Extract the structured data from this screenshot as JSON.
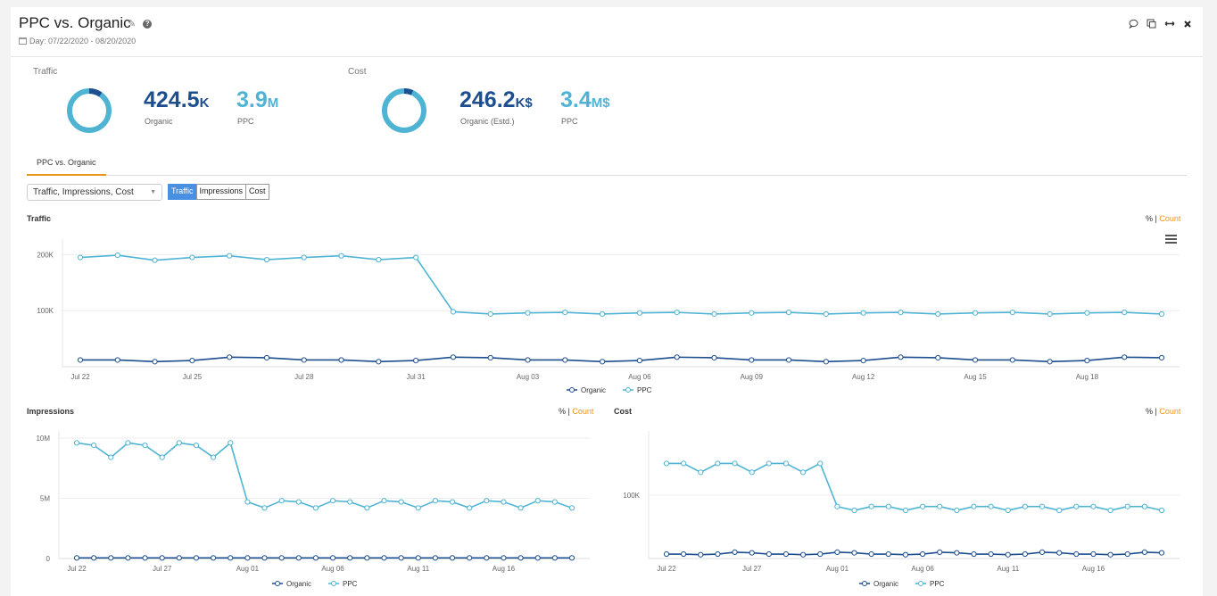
{
  "header": {
    "title": "PPC vs. Organic",
    "date_range": "Day: 07/22/2020 - 08/20/2020",
    "icons": [
      "pencil-icon",
      "help-icon",
      "comment-icon",
      "copy-icon",
      "resize-icon",
      "close-icon"
    ]
  },
  "kpis": {
    "traffic": {
      "label": "Traffic",
      "organic_value": "424.5",
      "organic_unit": "K",
      "organic_label": "Organic",
      "ppc_value": "3.9",
      "ppc_unit": "M",
      "ppc_label": "PPC",
      "organic_share": 0.098
    },
    "cost": {
      "label": "Cost",
      "organic_value": "246.2",
      "organic_unit": "K$",
      "organic_label": "Organic (Estd.)",
      "ppc_value": "3.4",
      "ppc_unit": "M$",
      "ppc_label": "PPC",
      "organic_share": 0.067
    }
  },
  "tabs": [
    {
      "label": "PPC vs. Organic",
      "active": true
    }
  ],
  "controls": {
    "metrics_select": "Traffic, Impressions, Cost",
    "toggle": [
      "Traffic",
      "Impressions",
      "Cost"
    ],
    "toggle_active": "Traffic"
  },
  "pct_label": "%",
  "sep": "|",
  "count_label": "Count",
  "colors": {
    "organic": "#1d4e8f",
    "ppc": "#4fb4d4",
    "accent": "#e8951a",
    "active_button": "#4a90e2"
  },
  "chart_data": [
    {
      "type": "line",
      "title": "Traffic",
      "x": [
        "Jul 22",
        "Jul 23",
        "Jul 24",
        "Jul 25",
        "Jul 26",
        "Jul 27",
        "Jul 28",
        "Jul 29",
        "Jul 30",
        "Jul 31",
        "Aug 01",
        "Aug 02",
        "Aug 03",
        "Aug 04",
        "Aug 05",
        "Aug 06",
        "Aug 07",
        "Aug 08",
        "Aug 09",
        "Aug 10",
        "Aug 11",
        "Aug 12",
        "Aug 13",
        "Aug 14",
        "Aug 15",
        "Aug 16",
        "Aug 17",
        "Aug 18",
        "Aug 19",
        "Aug 20"
      ],
      "xticks": [
        "Jul 22",
        "Jul 25",
        "Jul 28",
        "Jul 31",
        "Aug 03",
        "Aug 06",
        "Aug 09",
        "Aug 12",
        "Aug 15",
        "Aug 18"
      ],
      "yticks": [
        {
          "value": 100000,
          "label": "100K"
        },
        {
          "value": 200000,
          "label": "200K"
        }
      ],
      "ylim": [
        0,
        215000
      ],
      "series": [
        {
          "name": "Organic",
          "values": [
            12000,
            12000,
            9000,
            11000,
            17000,
            16000,
            12000,
            12000,
            9000,
            11000,
            17000,
            16000,
            12000,
            12000,
            9000,
            11000,
            17000,
            16000,
            12000,
            12000,
            9000,
            11000,
            17000,
            16000,
            12000,
            12000,
            9000,
            11000,
            17000,
            16000
          ]
        },
        {
          "name": "PPC",
          "values": [
            195000,
            199000,
            190000,
            195000,
            198000,
            191000,
            195000,
            198000,
            191000,
            195000,
            98000,
            94000,
            96000,
            97000,
            94000,
            96000,
            97000,
            94000,
            96000,
            97000,
            94000,
            96000,
            97000,
            94000,
            96000,
            97000,
            94000,
            96000,
            97000,
            94000
          ]
        }
      ]
    },
    {
      "type": "line",
      "title": "Impressions",
      "x": [
        "Jul 22",
        "Jul 23",
        "Jul 24",
        "Jul 25",
        "Jul 26",
        "Jul 27",
        "Jul 28",
        "Jul 29",
        "Jul 30",
        "Jul 31",
        "Aug 01",
        "Aug 02",
        "Aug 03",
        "Aug 04",
        "Aug 05",
        "Aug 06",
        "Aug 07",
        "Aug 08",
        "Aug 09",
        "Aug 10",
        "Aug 11",
        "Aug 12",
        "Aug 13",
        "Aug 14",
        "Aug 15",
        "Aug 16",
        "Aug 17",
        "Aug 18",
        "Aug 19",
        "Aug 20"
      ],
      "xticks": [
        "Jul 22",
        "Jul 27",
        "Aug 01",
        "Aug 06",
        "Aug 11",
        "Aug 16"
      ],
      "yticks": [
        {
          "value": 0,
          "label": "0"
        },
        {
          "value": 5000000,
          "label": "5M"
        },
        {
          "value": 10000000,
          "label": "10M"
        }
      ],
      "ylim": [
        0,
        10000000
      ],
      "series": [
        {
          "name": "Organic",
          "values": [
            50000,
            50000,
            50000,
            50000,
            50000,
            50000,
            50000,
            50000,
            50000,
            50000,
            50000,
            50000,
            50000,
            50000,
            50000,
            50000,
            50000,
            50000,
            50000,
            50000,
            50000,
            50000,
            50000,
            50000,
            50000,
            50000,
            50000,
            50000,
            50000,
            50000
          ]
        },
        {
          "name": "PPC",
          "values": [
            9600000,
            9400000,
            8400000,
            9600000,
            9400000,
            8400000,
            9600000,
            9400000,
            8400000,
            9600000,
            4700000,
            4200000,
            4800000,
            4700000,
            4200000,
            4800000,
            4700000,
            4200000,
            4800000,
            4700000,
            4200000,
            4800000,
            4700000,
            4200000,
            4800000,
            4700000,
            4200000,
            4800000,
            4700000,
            4200000
          ]
        }
      ]
    },
    {
      "type": "line",
      "title": "Cost",
      "x": [
        "Jul 22",
        "Jul 23",
        "Jul 24",
        "Jul 25",
        "Jul 26",
        "Jul 27",
        "Jul 28",
        "Jul 29",
        "Jul 30",
        "Jul 31",
        "Aug 01",
        "Aug 02",
        "Aug 03",
        "Aug 04",
        "Aug 05",
        "Aug 06",
        "Aug 07",
        "Aug 08",
        "Aug 09",
        "Aug 10",
        "Aug 11",
        "Aug 12",
        "Aug 13",
        "Aug 14",
        "Aug 15",
        "Aug 16",
        "Aug 17",
        "Aug 18",
        "Aug 19",
        "Aug 20"
      ],
      "xticks": [
        "Jul 22",
        "Jul 27",
        "Aug 01",
        "Aug 06",
        "Aug 11",
        "Aug 16"
      ],
      "yticks": [
        {
          "value": 100000,
          "label": "100K"
        }
      ],
      "ylim": [
        0,
        190000
      ],
      "series": [
        {
          "name": "Organic",
          "values": [
            7000,
            7000,
            6000,
            7000,
            10000,
            9000,
            7000,
            7000,
            6000,
            7000,
            10000,
            9000,
            7000,
            7000,
            6000,
            7000,
            10000,
            9000,
            7000,
            7000,
            6000,
            7000,
            10000,
            9000,
            7000,
            7000,
            6000,
            7000,
            10000,
            9000
          ]
        },
        {
          "name": "PPC",
          "values": [
            150000,
            150000,
            136000,
            150000,
            150000,
            136000,
            150000,
            150000,
            136000,
            150000,
            82000,
            76000,
            82000,
            82000,
            76000,
            82000,
            82000,
            76000,
            82000,
            82000,
            76000,
            82000,
            82000,
            76000,
            82000,
            82000,
            76000,
            82000,
            82000,
            76000
          ]
        }
      ]
    }
  ]
}
